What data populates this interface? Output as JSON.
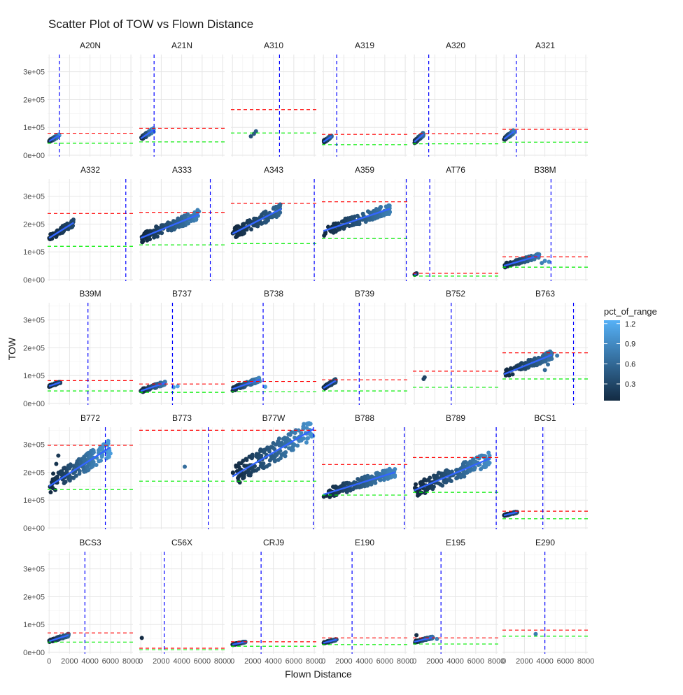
{
  "chart_data": {
    "type": "scatter",
    "title": "Scatter Plot of TOW vs Flown Distance",
    "xlabel": "Flown Distance",
    "ylabel": "TOW",
    "xlim": [
      -150,
      8200
    ],
    "ylim": [
      -5000,
      362000
    ],
    "x_ticks": [
      0,
      2000,
      4000,
      6000,
      8000
    ],
    "x_tick_labels": [
      "0",
      "2000",
      "4000",
      "6000",
      "8000"
    ],
    "y_ticks": [
      0,
      100000,
      200000,
      300000
    ],
    "y_tick_labels": [
      "0e+00",
      "1e+05",
      "2e+05",
      "3e+05"
    ],
    "grid": true,
    "facet_layout": {
      "rows": 5,
      "cols": 6
    },
    "legend": {
      "title": "pct_of_range",
      "position": "right",
      "ticks": [
        0.3,
        0.6,
        0.9,
        1.2
      ],
      "tick_labels": [
        "0.3",
        "0.6",
        "0.9",
        "1.2"
      ],
      "range": [
        0.05,
        1.25
      ],
      "low_color": "#132B43",
      "high_color": "#56B1F7"
    },
    "line_colors": {
      "max_tow": "#ff0000",
      "min_tow": "#00ee00",
      "range": "#0000ff",
      "fit": "#3366ff"
    },
    "panels": [
      {
        "name": "A20N",
        "xmin": 0,
        "xmax": 1000,
        "ymin": 50000,
        "ymax": 72000,
        "max_tow": 79000,
        "min_tow": 43000,
        "range": 1000
      },
      {
        "name": "A21N",
        "xmin": 0,
        "xmax": 1300,
        "ymin": 60000,
        "ymax": 92000,
        "max_tow": 97000,
        "min_tow": 48000,
        "range": 1300
      },
      {
        "name": "A310",
        "xmin": 0,
        "xmax": 0,
        "ymin": 0,
        "ymax": 0,
        "max_tow": 164000,
        "min_tow": 80000,
        "range": 4600,
        "extra": [
          [
            1800,
            68000
          ],
          [
            2100,
            77000
          ],
          [
            2300,
            86000
          ]
        ]
      },
      {
        "name": "A319",
        "xmin": 0,
        "xmax": 800,
        "ymin": 48000,
        "ymax": 68000,
        "max_tow": 75000,
        "min_tow": 38000,
        "range": 1300
      },
      {
        "name": "A320",
        "xmin": 0,
        "xmax": 900,
        "ymin": 48000,
        "ymax": 76000,
        "max_tow": 77000,
        "min_tow": 41000,
        "range": 1400
      },
      {
        "name": "A321",
        "xmin": 0,
        "xmax": 1000,
        "ymin": 58000,
        "ymax": 86000,
        "max_tow": 93000,
        "min_tow": 47000,
        "range": 1200
      },
      {
        "name": "A332",
        "xmin": 0,
        "xmax": 2400,
        "ymin": 150000,
        "ymax": 205000,
        "max_tow": 238000,
        "min_tow": 120000,
        "range": 7500
      },
      {
        "name": "A333",
        "xmin": 0,
        "xmax": 5700,
        "ymin": 150000,
        "ymax": 235000,
        "max_tow": 242000,
        "min_tow": 125000,
        "range": 6800
      },
      {
        "name": "A343",
        "xmin": 0,
        "xmax": 4800,
        "ymin": 165000,
        "ymax": 255000,
        "max_tow": 275000,
        "min_tow": 130000,
        "range": 8000
      },
      {
        "name": "A359",
        "xmin": 0,
        "xmax": 6500,
        "ymin": 175000,
        "ymax": 255000,
        "max_tow": 280000,
        "min_tow": 148000,
        "range": 8100
      },
      {
        "name": "AT76",
        "xmin": 0,
        "xmax": 220,
        "ymin": 18000,
        "ymax": 22000,
        "max_tow": 23000,
        "min_tow": 13000,
        "range": 1500
      },
      {
        "name": "B38M",
        "xmin": 0,
        "xmax": 3500,
        "ymin": 50000,
        "ymax": 87000,
        "max_tow": 82000,
        "min_tow": 45000,
        "range": 4600,
        "extra": [
          [
            3700,
            60000
          ],
          [
            4000,
            68000
          ],
          [
            4400,
            64000
          ]
        ]
      },
      {
        "name": "B39M",
        "xmin": 0,
        "xmax": 1100,
        "ymin": 62000,
        "ymax": 76000,
        "max_tow": 82000,
        "min_tow": 45000,
        "range": 3800
      },
      {
        "name": "B737",
        "xmin": 0,
        "xmax": 2400,
        "ymin": 45000,
        "ymax": 74000,
        "max_tow": 70000,
        "min_tow": 40000,
        "range": 3100,
        "extra": [
          [
            3200,
            58000
          ],
          [
            3600,
            62000
          ]
        ]
      },
      {
        "name": "B738",
        "xmin": 0,
        "xmax": 2700,
        "ymin": 52000,
        "ymax": 86000,
        "max_tow": 79000,
        "min_tow": 42000,
        "range": 3000,
        "extra": [
          [
            3200,
            60000
          ]
        ]
      },
      {
        "name": "B739",
        "xmin": 0,
        "xmax": 1200,
        "ymin": 55000,
        "ymax": 82000,
        "max_tow": 85000,
        "min_tow": 45000,
        "range": 3500
      },
      {
        "name": "B752",
        "xmin": 0,
        "xmax": 0,
        "ymin": 0,
        "ymax": 0,
        "max_tow": 116000,
        "min_tow": 58000,
        "range": 3600,
        "extra": [
          [
            900,
            88000
          ],
          [
            1000,
            94000
          ]
        ]
      },
      {
        "name": "B763",
        "xmin": 0,
        "xmax": 4700,
        "ymin": 105000,
        "ymax": 175000,
        "max_tow": 182000,
        "min_tow": 88000,
        "range": 6800,
        "extra": [
          [
            4300,
            140000
          ],
          [
            4000,
            120000
          ],
          [
            4700,
            180000
          ],
          [
            5200,
            172000
          ]
        ]
      },
      {
        "name": "B772",
        "xmin": 0,
        "xmax": 6000,
        "ymin": 150000,
        "ymax": 290000,
        "max_tow": 297000,
        "min_tow": 138000,
        "range": 5500,
        "extra": [
          [
            400,
            195000
          ],
          [
            700,
            230000
          ],
          [
            900,
            260000
          ],
          [
            600,
            170000
          ]
        ]
      },
      {
        "name": "B773",
        "xmin": 0,
        "xmax": 0,
        "ymin": 0,
        "ymax": 0,
        "max_tow": 351000,
        "min_tow": 168000,
        "range": 6600,
        "extra": [
          [
            4300,
            220000
          ]
        ]
      },
      {
        "name": "B77W",
        "xmin": 0,
        "xmax": 7900,
        "ymin": 185000,
        "ymax": 355000,
        "max_tow": 351000,
        "min_tow": 168000,
        "range": 7900
      },
      {
        "name": "B788",
        "xmin": 0,
        "xmax": 7000,
        "ymin": 120000,
        "ymax": 200000,
        "max_tow": 228000,
        "min_tow": 118000,
        "range": 7900
      },
      {
        "name": "B789",
        "xmin": 0,
        "xmax": 7400,
        "ymin": 135000,
        "ymax": 250000,
        "max_tow": 253000,
        "min_tow": 128000,
        "range": 8000
      },
      {
        "name": "BCS1",
        "xmin": 0,
        "xmax": 1300,
        "ymin": 45000,
        "ymax": 57000,
        "max_tow": 60000,
        "min_tow": 33000,
        "range": 3800
      },
      {
        "name": "BCS3",
        "xmin": 0,
        "xmax": 1900,
        "ymin": 40000,
        "ymax": 62000,
        "max_tow": 70000,
        "min_tow": 37000,
        "range": 3500
      },
      {
        "name": "C56X",
        "xmin": 0,
        "xmax": 0,
        "ymin": 0,
        "ymax": 0,
        "max_tow": 15000,
        "min_tow": 9000,
        "range": 2300,
        "extra": [
          [
            100,
            52000
          ]
        ]
      },
      {
        "name": "CRJ9",
        "xmin": 0,
        "xmax": 1300,
        "ymin": 28000,
        "ymax": 38000,
        "max_tow": 38000,
        "min_tow": 22000,
        "range": 2800
      },
      {
        "name": "E190",
        "xmin": 0,
        "xmax": 1300,
        "ymin": 34000,
        "ymax": 46000,
        "max_tow": 52000,
        "min_tow": 28000,
        "range": 2800
      },
      {
        "name": "E195",
        "xmin": 0,
        "xmax": 1800,
        "ymin": 38000,
        "ymax": 54000,
        "max_tow": 52000,
        "min_tow": 30000,
        "range": 2600,
        "extra": [
          [
            200,
            62000
          ],
          [
            2200,
            48000
          ]
        ]
      },
      {
        "name": "E290",
        "xmin": 0,
        "xmax": 0,
        "ymin": 0,
        "ymax": 0,
        "max_tow": 80000,
        "min_tow": 58000,
        "range": 4000,
        "extra": [
          [
            3100,
            66000
          ]
        ]
      }
    ]
  }
}
